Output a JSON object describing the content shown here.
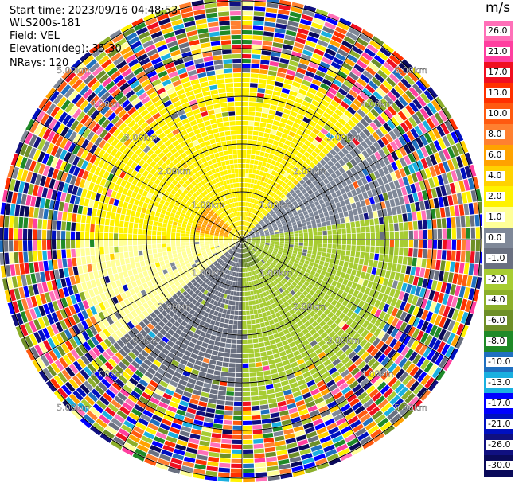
{
  "header": {
    "start_time": "Start time: 2023/09/16 04:48:53",
    "instrument": "WLS200s-181",
    "field": "Field: VEL",
    "elevation": "Elevation(deg): 35.30",
    "nrays": "NRays: 120"
  },
  "colorbar": {
    "unit": "m/s",
    "ticks": [
      "26.0",
      "21.0",
      "17.0",
      "13.0",
      "10.0",
      "8.0",
      "6.0",
      "4.0",
      "2.0",
      "1.0",
      "0.0",
      "-1.0",
      "-2.0",
      "-4.0",
      "-6.0",
      "-8.0",
      "-10.0",
      "-13.0",
      "-17.0",
      "-21.0",
      "-26.0",
      "-30.0"
    ],
    "colors": [
      "#ff70b8",
      "#ff3f9f",
      "#f00f20",
      "#ff3000",
      "#ff5a10",
      "#ff8030",
      "#ffa200",
      "#ffd200",
      "#fff200",
      "#ffff98",
      "#7f8898",
      "#6a7080",
      "#a7cc32",
      "#8caf2a",
      "#6e8f28",
      "#1f8a28",
      "#2070c0",
      "#1ab0e0",
      "#0000ff",
      "#0010c0",
      "#101080",
      "#0a0a5a"
    ]
  },
  "chart_data": {
    "type": "ppi",
    "field": "VEL",
    "units": "m/s",
    "nrays": 120,
    "elevation_deg": 35.3,
    "range_ring_labels": [
      "1.00km",
      "2.00km",
      "3.00km",
      "4.00km",
      "5.00km"
    ],
    "color_scale": [
      26.0,
      21.0,
      17.0,
      13.0,
      10.0,
      8.0,
      6.0,
      4.0,
      2.0,
      1.0,
      0.0,
      -1.0,
      -2.0,
      -4.0,
      -6.0,
      -8.0,
      -10.0,
      -13.0,
      -17.0,
      -21.0,
      -26.0,
      -30.0
    ],
    "velocity_regions": [
      {
        "azimuth_from": 270,
        "azimuth_to": 45,
        "range_km": [
          0,
          3.5
        ],
        "velocity_ms": 2.0
      },
      {
        "azimuth_from": 280,
        "azimuth_to": 315,
        "range_km": [
          0.3,
          0.9
        ],
        "velocity_ms": 6.0
      },
      {
        "azimuth_from": 45,
        "azimuth_to": 80,
        "range_km": [
          0,
          3.5
        ],
        "velocity_ms": 0.0
      },
      {
        "azimuth_from": 80,
        "azimuth_to": 180,
        "range_km": [
          0,
          3.5
        ],
        "velocity_ms": -2.0
      },
      {
        "azimuth_from": 140,
        "azimuth_to": 180,
        "range_km": [
          0.1,
          0.6
        ],
        "velocity_ms": -6.0
      },
      {
        "azimuth_from": 180,
        "azimuth_to": 230,
        "range_km": [
          0,
          3.5
        ],
        "velocity_ms": -1.0
      },
      {
        "azimuth_from": 230,
        "azimuth_to": 270,
        "range_km": [
          0,
          3.5
        ],
        "velocity_ms": 1.0
      }
    ],
    "noise_beyond_km": 3.5
  }
}
